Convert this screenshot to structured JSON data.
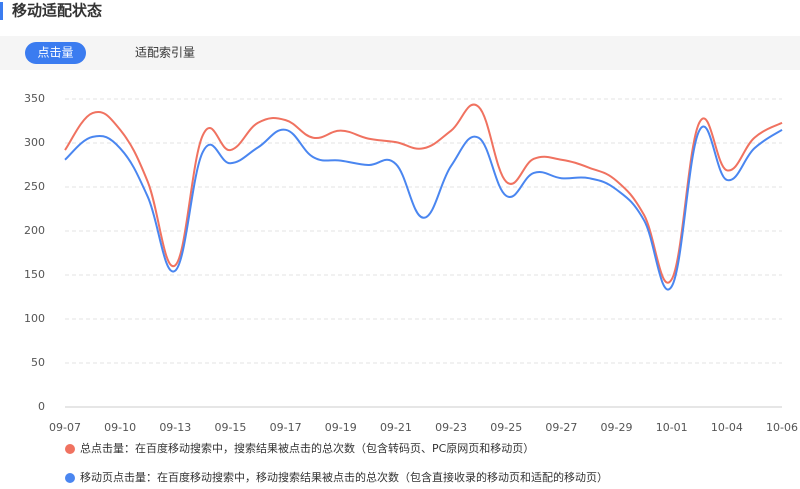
{
  "header": {
    "title": "移动适配状态"
  },
  "tabs": [
    "点击量",
    "适配索引量"
  ],
  "chart_data": {
    "type": "line",
    "categories": [
      "09-07",
      null,
      "09-10",
      null,
      "09-13",
      null,
      "09-15",
      null,
      "09-17",
      null,
      "09-19",
      null,
      "09-21",
      null,
      "09-23",
      null,
      "09-25",
      null,
      "09-27",
      null,
      "09-29",
      null,
      "10-01",
      null,
      "10-04",
      null,
      "10-06"
    ],
    "series": [
      {
        "name": "总点击量：在百度移动搜索中，搜索结果被点击的总次数（包含转码页、PC原网页和移动页）",
        "color": "#f07260",
        "values": [
          292,
          334,
          315,
          256,
          161,
          309,
          292,
          323,
          326,
          306,
          314,
          305,
          301,
          294,
          314,
          341,
          256,
          282,
          281,
          272,
          257,
          218,
          145,
          323,
          269,
          306,
          323
        ]
      },
      {
        "name": "移动页点击量：在百度移动搜索中，移动搜索结果被点击的总次数（包含直接收录的移动页和适配的移动页）",
        "color": "#4a86f0",
        "values": [
          281,
          307,
          294,
          239,
          155,
          290,
          277,
          295,
          315,
          284,
          280,
          275,
          276,
          215,
          274,
          306,
          240,
          266,
          260,
          260,
          247,
          212,
          137,
          314,
          258,
          294,
          315
        ]
      }
    ],
    "ylim": [
      0,
      350
    ],
    "yticks": [
      0,
      50,
      100,
      150,
      200,
      250,
      300,
      350
    ],
    "grid": true
  }
}
